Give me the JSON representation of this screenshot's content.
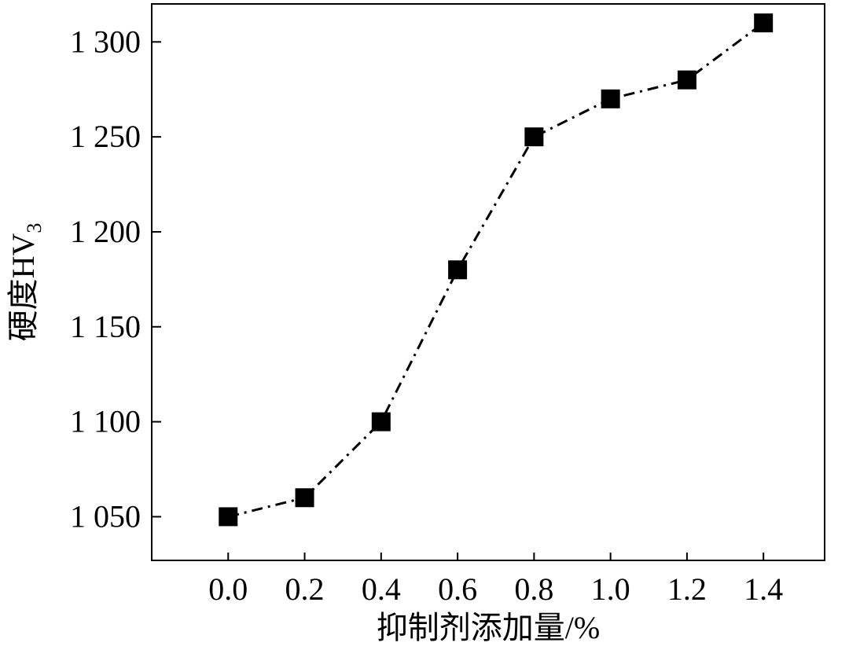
{
  "chart_data": {
    "type": "line",
    "title": "",
    "xlabel": "抑制剂添加量/%",
    "ylabel": {
      "main": "硬度HV",
      "subscript": "3"
    },
    "x": [
      0.0,
      0.2,
      0.4,
      0.6,
      0.8,
      1.0,
      1.2,
      1.4
    ],
    "x_tick_labels": [
      "0.0",
      "0.2",
      "0.4",
      "0.6",
      "0.8",
      "1.0",
      "1.2",
      "1.4"
    ],
    "y_ticks": [
      1050,
      1100,
      1150,
      1200,
      1250,
      1300
    ],
    "y_tick_labels": [
      "1 050",
      "1 100",
      "1 150",
      "1 200",
      "1 250",
      "1 300"
    ],
    "xlim": [
      -0.2,
      1.56
    ],
    "ylim": [
      1027,
      1320
    ],
    "grid": false,
    "series": [
      {
        "values": [
          1050,
          1060,
          1100,
          1180,
          1250,
          1270,
          1280,
          1310
        ],
        "marker": "square",
        "line_style": "dash-dot",
        "color": "#000000"
      }
    ]
  }
}
